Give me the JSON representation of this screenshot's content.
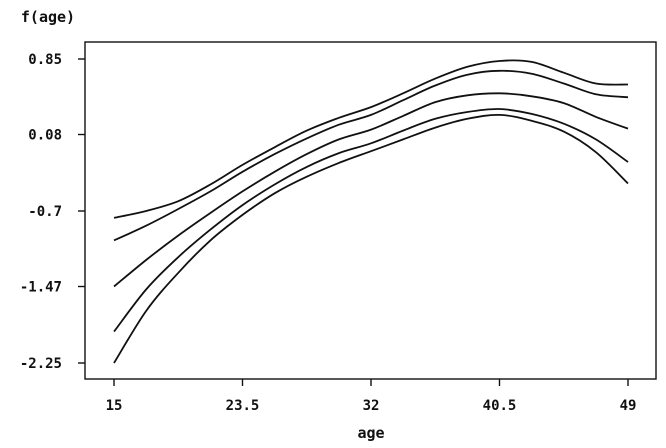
{
  "chart_data": {
    "type": "line",
    "title": "",
    "xlabel": "age",
    "ylabel": "f(age)",
    "xlim": [
      15,
      49
    ],
    "ylim": [
      -2.25,
      0.85
    ],
    "xticks": [
      15,
      23.5,
      32,
      40.5,
      49
    ],
    "xtick_labels": [
      "15",
      "23.5",
      "32",
      "40.5",
      "49"
    ],
    "yticks": [
      0.85,
      0.08,
      -0.7,
      -1.47,
      -2.25
    ],
    "ytick_labels": [
      "0.85",
      "0.08",
      "-0.7",
      "-1.47",
      "-2.25"
    ],
    "grid": false,
    "x": [
      15,
      17.125,
      19.25,
      21.375,
      23.5,
      25.625,
      27.75,
      29.875,
      32,
      34.125,
      36.25,
      38.375,
      40.5,
      42.625,
      44.75,
      46.875,
      49
    ],
    "series": [
      {
        "values": [
          -0.77,
          -0.7,
          -0.6,
          -0.43,
          -0.23,
          -0.05,
          0.12,
          0.25,
          0.36,
          0.5,
          0.65,
          0.77,
          0.83,
          0.82,
          0.71,
          0.6,
          0.59
        ]
      },
      {
        "values": [
          -1.0,
          -0.85,
          -0.68,
          -0.5,
          -0.3,
          -0.12,
          0.04,
          0.18,
          0.28,
          0.43,
          0.58,
          0.69,
          0.73,
          0.7,
          0.6,
          0.49,
          0.46
        ]
      },
      {
        "values": [
          -1.47,
          -1.2,
          -0.95,
          -0.72,
          -0.5,
          -0.3,
          -0.12,
          0.03,
          0.13,
          0.27,
          0.41,
          0.48,
          0.5,
          0.47,
          0.4,
          0.26,
          0.14
        ]
      },
      {
        "values": [
          -1.93,
          -1.5,
          -1.17,
          -0.89,
          -0.64,
          -0.43,
          -0.25,
          -0.11,
          -0.01,
          0.12,
          0.24,
          0.31,
          0.34,
          0.29,
          0.19,
          0.03,
          -0.2
        ]
      },
      {
        "values": [
          -2.25,
          -1.72,
          -1.33,
          -1.0,
          -0.74,
          -0.52,
          -0.35,
          -0.21,
          -0.09,
          0.03,
          0.15,
          0.24,
          0.28,
          0.22,
          0.11,
          -0.1,
          -0.42
        ]
      }
    ]
  }
}
